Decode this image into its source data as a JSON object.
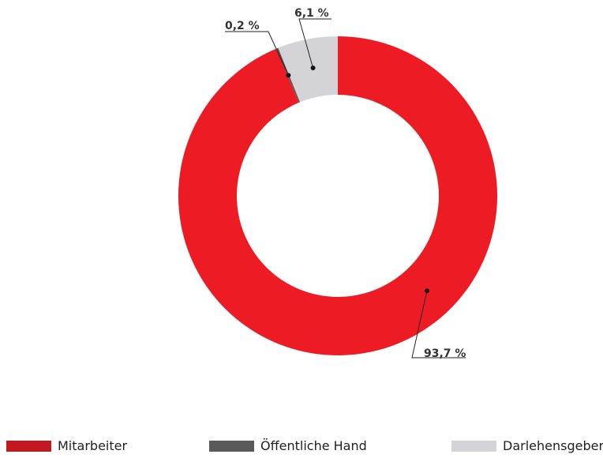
{
  "chart_data": {
    "type": "pie",
    "donut": true,
    "categories": [
      "Mitarbeiter",
      "Öffentliche Hand",
      "Darlehensgeber"
    ],
    "values": [
      93.7,
      0.2,
      6.1
    ],
    "labels": [
      "93,7 %",
      "0,2 %",
      "6,1 %"
    ],
    "colors": [
      "#ed1c24",
      "#5a5a5a",
      "#d4d4d6"
    ],
    "legend_placement": "bottom"
  }
}
